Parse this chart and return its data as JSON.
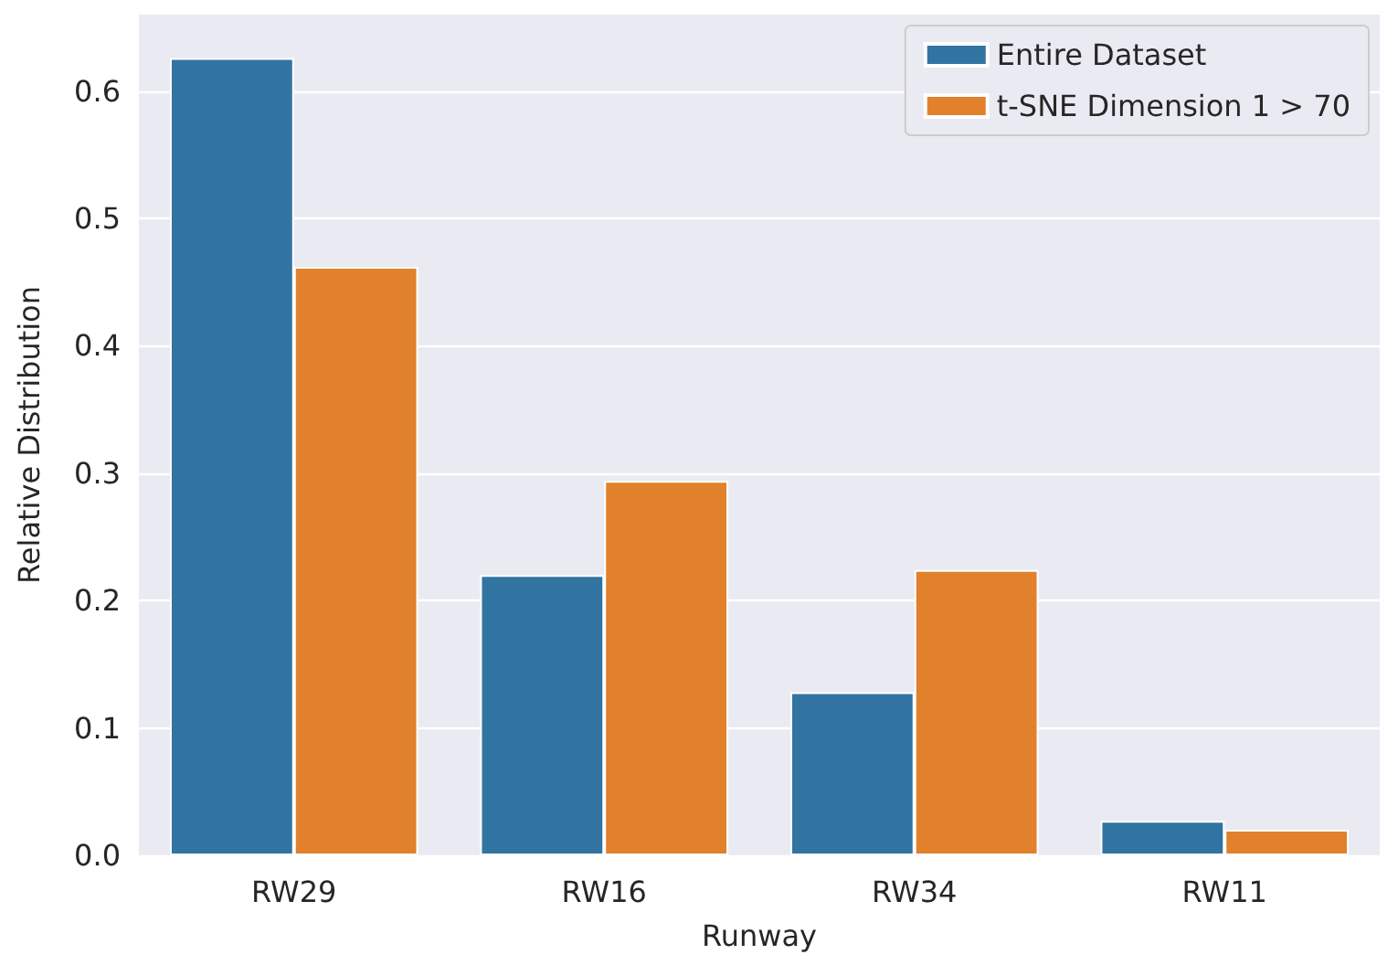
{
  "chart_data": {
    "type": "bar",
    "xlabel": "Runway",
    "ylabel": "Relative Distribution",
    "categories": [
      "RW29",
      "RW16",
      "RW34",
      "RW11"
    ],
    "series": [
      {
        "name": "Entire Dataset",
        "color": "#3274a1",
        "values": [
          0.626,
          0.22,
          0.128,
          0.027
        ]
      },
      {
        "name": "t-SNE Dimension 1 > 70",
        "color": "#e1812c",
        "values": [
          0.462,
          0.294,
          0.224,
          0.02
        ]
      }
    ],
    "ylim": [
      0,
      0.66
    ],
    "yticks": [
      {
        "value": 0,
        "label": "0.0"
      },
      0.1,
      0.2,
      0.3,
      0.4,
      0.5,
      0.6
    ],
    "grid": "y",
    "legend": "top right"
  }
}
